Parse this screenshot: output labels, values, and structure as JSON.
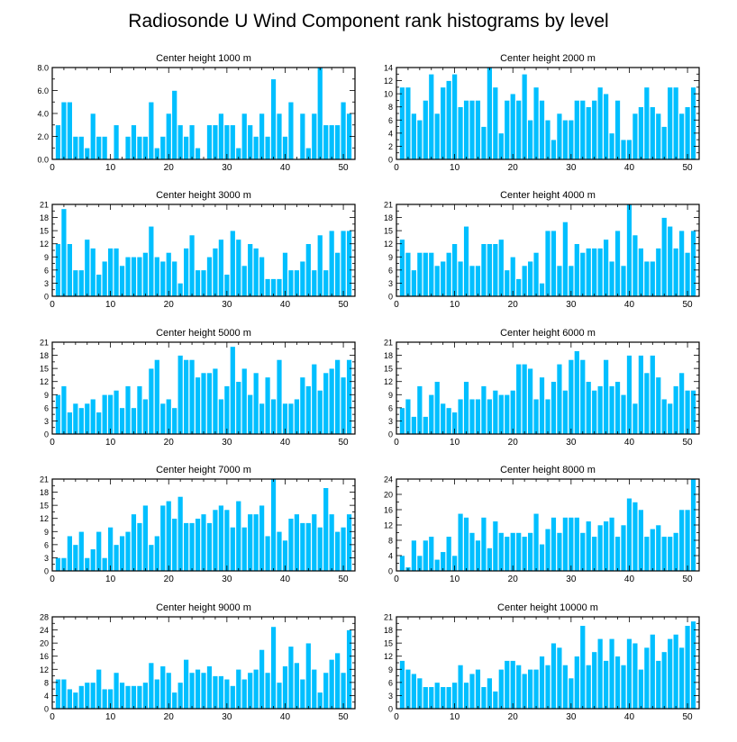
{
  "title": "Radiosonde U Wind Component rank histograms by level",
  "colors": {
    "bar": "#00BFFF",
    "bar_edge": "#ffffff",
    "axis": "#000000",
    "background": "#ffffff"
  },
  "chart_data": [
    {
      "type": "bar",
      "title": "Center height 1000 m",
      "xlabel": "",
      "ylabel": "",
      "xlim": [
        0,
        52
      ],
      "ylim": [
        0,
        8
      ],
      "xticks": [
        0,
        10,
        20,
        30,
        40,
        50
      ],
      "yticks": [
        0,
        2,
        4,
        6,
        8
      ],
      "ytick_labels": [
        "0.0",
        "2.0",
        "4.0",
        "6.0",
        "8.0"
      ],
      "x": [
        1,
        2,
        3,
        4,
        5,
        6,
        7,
        8,
        9,
        10,
        11,
        12,
        13,
        14,
        15,
        16,
        17,
        18,
        19,
        20,
        21,
        22,
        23,
        24,
        25,
        26,
        27,
        28,
        29,
        30,
        31,
        32,
        33,
        34,
        35,
        36,
        37,
        38,
        39,
        40,
        41,
        42,
        43,
        44,
        45,
        46,
        47,
        48,
        49,
        50,
        51
      ],
      "values": [
        3,
        5,
        5,
        2,
        2,
        1,
        4,
        2,
        2,
        0,
        3,
        0,
        2,
        3,
        2,
        2,
        5,
        1,
        2,
        4,
        6,
        3,
        2,
        3,
        1,
        0,
        3,
        3,
        4,
        3,
        3,
        1,
        4,
        3,
        2,
        4,
        2,
        7,
        4,
        2,
        5,
        0,
        4,
        1,
        4,
        8,
        3,
        3,
        3,
        5,
        4
      ]
    },
    {
      "type": "bar",
      "title": "Center height 2000 m",
      "xlabel": "",
      "ylabel": "",
      "xlim": [
        0,
        52
      ],
      "ylim": [
        0,
        14
      ],
      "xticks": [
        0,
        10,
        20,
        30,
        40,
        50
      ],
      "yticks": [
        0,
        2,
        4,
        6,
        8,
        10,
        12,
        14
      ],
      "ytick_labels": [
        "0",
        "2",
        "4",
        "6",
        "8",
        "10",
        "12",
        "14"
      ],
      "x": [
        1,
        2,
        3,
        4,
        5,
        6,
        7,
        8,
        9,
        10,
        11,
        12,
        13,
        14,
        15,
        16,
        17,
        18,
        19,
        20,
        21,
        22,
        23,
        24,
        25,
        26,
        27,
        28,
        29,
        30,
        31,
        32,
        33,
        34,
        35,
        36,
        37,
        38,
        39,
        40,
        41,
        42,
        43,
        44,
        45,
        46,
        47,
        48,
        49,
        50,
        51
      ],
      "values": [
        11,
        11,
        7,
        6,
        9,
        13,
        7,
        11,
        12,
        13,
        8,
        9,
        9,
        9,
        5,
        14,
        11,
        4,
        9,
        10,
        9,
        13,
        6,
        11,
        9,
        6,
        3,
        7,
        6,
        6,
        9,
        9,
        8,
        9,
        11,
        10,
        4,
        9,
        3,
        3,
        7,
        8,
        11,
        8,
        7,
        5,
        11,
        11,
        7,
        8,
        11
      ]
    },
    {
      "type": "bar",
      "title": "Center height 3000 m",
      "xlabel": "",
      "ylabel": "",
      "xlim": [
        0,
        52
      ],
      "ylim": [
        0,
        21
      ],
      "xticks": [
        0,
        10,
        20,
        30,
        40,
        50
      ],
      "yticks": [
        0,
        3,
        6,
        9,
        12,
        15,
        18,
        21
      ],
      "ytick_labels": [
        "0",
        "3",
        "6",
        "9",
        "12",
        "15",
        "18",
        "21"
      ],
      "x": [
        1,
        2,
        3,
        4,
        5,
        6,
        7,
        8,
        9,
        10,
        11,
        12,
        13,
        14,
        15,
        16,
        17,
        18,
        19,
        20,
        21,
        22,
        23,
        24,
        25,
        26,
        27,
        28,
        29,
        30,
        31,
        32,
        33,
        34,
        35,
        36,
        37,
        38,
        39,
        40,
        41,
        42,
        43,
        44,
        45,
        46,
        47,
        48,
        49,
        50,
        51
      ],
      "values": [
        12,
        20,
        12,
        6,
        6,
        13,
        11,
        5,
        8,
        11,
        11,
        7,
        9,
        9,
        9,
        10,
        16,
        9,
        8,
        10,
        8,
        3,
        11,
        14,
        6,
        6,
        9,
        11,
        13,
        5,
        15,
        13,
        7,
        12,
        11,
        9,
        4,
        4,
        4,
        10,
        6,
        6,
        8,
        12,
        6,
        14,
        6,
        15,
        10,
        15,
        15
      ]
    },
    {
      "type": "bar",
      "title": "Center height 4000 m",
      "xlabel": "",
      "ylabel": "",
      "xlim": [
        0,
        52
      ],
      "ylim": [
        0,
        21
      ],
      "xticks": [
        0,
        10,
        20,
        30,
        40,
        50
      ],
      "yticks": [
        0,
        3,
        6,
        9,
        12,
        15,
        18,
        21
      ],
      "ytick_labels": [
        "0",
        "3",
        "6",
        "9",
        "12",
        "15",
        "18",
        "21"
      ],
      "x": [
        1,
        2,
        3,
        4,
        5,
        6,
        7,
        8,
        9,
        10,
        11,
        12,
        13,
        14,
        15,
        16,
        17,
        18,
        19,
        20,
        21,
        22,
        23,
        24,
        25,
        26,
        27,
        28,
        29,
        30,
        31,
        32,
        33,
        34,
        35,
        36,
        37,
        38,
        39,
        40,
        41,
        42,
        43,
        44,
        45,
        46,
        47,
        48,
        49,
        50,
        51
      ],
      "values": [
        13,
        10,
        6,
        10,
        10,
        10,
        7,
        8,
        10,
        12,
        8,
        16,
        7,
        7,
        12,
        12,
        12,
        13,
        6,
        9,
        4,
        7,
        8,
        10,
        3,
        15,
        15,
        7,
        17,
        7,
        12,
        10,
        11,
        11,
        11,
        13,
        8,
        15,
        7,
        21,
        14,
        11,
        8,
        8,
        11,
        18,
        16,
        11,
        15,
        10,
        15
      ]
    },
    {
      "type": "bar",
      "title": "Center height 5000 m",
      "xlabel": "",
      "ylabel": "",
      "xlim": [
        0,
        52
      ],
      "ylim": [
        0,
        21
      ],
      "xticks": [
        0,
        10,
        20,
        30,
        40,
        50
      ],
      "yticks": [
        0,
        3,
        6,
        9,
        12,
        15,
        18,
        21
      ],
      "ytick_labels": [
        "0",
        "3",
        "6",
        "9",
        "12",
        "15",
        "18",
        "21"
      ],
      "x": [
        1,
        2,
        3,
        4,
        5,
        6,
        7,
        8,
        9,
        10,
        11,
        12,
        13,
        14,
        15,
        16,
        17,
        18,
        19,
        20,
        21,
        22,
        23,
        24,
        25,
        26,
        27,
        28,
        29,
        30,
        31,
        32,
        33,
        34,
        35,
        36,
        37,
        38,
        39,
        40,
        41,
        42,
        43,
        44,
        45,
        46,
        47,
        48,
        49,
        50,
        51
      ],
      "values": [
        9,
        11,
        5,
        7,
        6,
        7,
        8,
        5,
        9,
        9,
        10,
        6,
        11,
        6,
        11,
        8,
        15,
        17,
        7,
        8,
        6,
        18,
        17,
        17,
        13,
        14,
        14,
        15,
        8,
        11,
        20,
        12,
        15,
        9,
        14,
        7,
        13,
        8,
        17,
        7,
        7,
        8,
        13,
        11,
        16,
        10,
        14,
        15,
        17,
        13,
        17
      ]
    },
    {
      "type": "bar",
      "title": "Center height 6000 m",
      "xlabel": "",
      "ylabel": "",
      "xlim": [
        0,
        52
      ],
      "ylim": [
        0,
        21
      ],
      "xticks": [
        0,
        10,
        20,
        30,
        40,
        50
      ],
      "yticks": [
        0,
        3,
        6,
        9,
        12,
        15,
        18,
        21
      ],
      "ytick_labels": [
        "0",
        "3",
        "6",
        "9",
        "12",
        "15",
        "18",
        "21"
      ],
      "x": [
        1,
        2,
        3,
        4,
        5,
        6,
        7,
        8,
        9,
        10,
        11,
        12,
        13,
        14,
        15,
        16,
        17,
        18,
        19,
        20,
        21,
        22,
        23,
        24,
        25,
        26,
        27,
        28,
        29,
        30,
        31,
        32,
        33,
        34,
        35,
        36,
        37,
        38,
        39,
        40,
        41,
        42,
        43,
        44,
        45,
        46,
        47,
        48,
        49,
        50,
        51
      ],
      "values": [
        6,
        8,
        4,
        11,
        4,
        9,
        12,
        7,
        6,
        5,
        8,
        12,
        8,
        8,
        11,
        8,
        10,
        9,
        9,
        10,
        16,
        16,
        15,
        8,
        13,
        8,
        12,
        16,
        10,
        17,
        19,
        17,
        12,
        10,
        11,
        17,
        11,
        12,
        9,
        18,
        7,
        18,
        14,
        18,
        13,
        8,
        7,
        11,
        14,
        10,
        10
      ]
    },
    {
      "type": "bar",
      "title": "Center height 7000 m",
      "xlabel": "",
      "ylabel": "",
      "xlim": [
        0,
        52
      ],
      "ylim": [
        0,
        21
      ],
      "xticks": [
        0,
        10,
        20,
        30,
        40,
        50
      ],
      "yticks": [
        0,
        3,
        6,
        9,
        12,
        15,
        18,
        21
      ],
      "ytick_labels": [
        "0",
        "3",
        "6",
        "9",
        "12",
        "15",
        "18",
        "21"
      ],
      "x": [
        1,
        2,
        3,
        4,
        5,
        6,
        7,
        8,
        9,
        10,
        11,
        12,
        13,
        14,
        15,
        16,
        17,
        18,
        19,
        20,
        21,
        22,
        23,
        24,
        25,
        26,
        27,
        28,
        29,
        30,
        31,
        32,
        33,
        34,
        35,
        36,
        37,
        38,
        39,
        40,
        41,
        42,
        43,
        44,
        45,
        46,
        47,
        48,
        49,
        50,
        51
      ],
      "values": [
        3,
        3,
        8,
        6,
        9,
        3,
        5,
        9,
        3,
        10,
        6,
        8,
        9,
        13,
        11,
        15,
        6,
        8,
        15,
        16,
        12,
        17,
        11,
        11,
        12,
        13,
        11,
        14,
        15,
        14,
        10,
        16,
        10,
        13,
        13,
        15,
        8,
        21,
        9,
        7,
        12,
        13,
        11,
        11,
        13,
        10,
        19,
        13,
        9,
        10,
        13
      ]
    },
    {
      "type": "bar",
      "title": "Center height 8000 m",
      "xlabel": "",
      "ylabel": "",
      "xlim": [
        0,
        52
      ],
      "ylim": [
        0,
        24
      ],
      "xticks": [
        0,
        10,
        20,
        30,
        40,
        50
      ],
      "yticks": [
        0,
        4,
        8,
        12,
        16,
        20,
        24
      ],
      "ytick_labels": [
        "0",
        "4",
        "8",
        "12",
        "16",
        "20",
        "24"
      ],
      "x": [
        1,
        2,
        3,
        4,
        5,
        6,
        7,
        8,
        9,
        10,
        11,
        12,
        13,
        14,
        15,
        16,
        17,
        18,
        19,
        20,
        21,
        22,
        23,
        24,
        25,
        26,
        27,
        28,
        29,
        30,
        31,
        32,
        33,
        34,
        35,
        36,
        37,
        38,
        39,
        40,
        41,
        42,
        43,
        44,
        45,
        46,
        47,
        48,
        49,
        50,
        51
      ],
      "values": [
        4,
        1,
        8,
        4,
        8,
        9,
        3,
        5,
        9,
        4,
        15,
        14,
        10,
        8,
        14,
        6,
        13,
        10,
        9,
        10,
        10,
        9,
        10,
        15,
        7,
        11,
        14,
        10,
        14,
        14,
        14,
        10,
        13,
        9,
        12,
        13,
        14,
        9,
        12,
        19,
        18,
        16,
        9,
        11,
        12,
        9,
        9,
        10,
        16,
        16,
        24
      ]
    },
    {
      "type": "bar",
      "title": "Center height 9000 m",
      "xlabel": "",
      "ylabel": "",
      "xlim": [
        0,
        52
      ],
      "ylim": [
        0,
        28
      ],
      "xticks": [
        0,
        10,
        20,
        30,
        40,
        50
      ],
      "yticks": [
        0,
        4,
        8,
        12,
        16,
        20,
        24,
        28
      ],
      "ytick_labels": [
        "0",
        "4",
        "8",
        "12",
        "16",
        "20",
        "24",
        "28"
      ],
      "x": [
        1,
        2,
        3,
        4,
        5,
        6,
        7,
        8,
        9,
        10,
        11,
        12,
        13,
        14,
        15,
        16,
        17,
        18,
        19,
        20,
        21,
        22,
        23,
        24,
        25,
        26,
        27,
        28,
        29,
        30,
        31,
        32,
        33,
        34,
        35,
        36,
        37,
        38,
        39,
        40,
        41,
        42,
        43,
        44,
        45,
        46,
        47,
        48,
        49,
        50,
        51
      ],
      "values": [
        9,
        9,
        6,
        5,
        7,
        8,
        8,
        12,
        6,
        6,
        11,
        8,
        7,
        7,
        7,
        8,
        14,
        9,
        13,
        11,
        5,
        8,
        15,
        11,
        12,
        11,
        13,
        10,
        10,
        9,
        7,
        12,
        9,
        11,
        12,
        18,
        11,
        25,
        8,
        13,
        19,
        14,
        9,
        20,
        12,
        5,
        11,
        15,
        17,
        11,
        24
      ]
    },
    {
      "type": "bar",
      "title": "Center height 10000 m",
      "xlabel": "",
      "ylabel": "",
      "xlim": [
        0,
        52
      ],
      "ylim": [
        0,
        21
      ],
      "xticks": [
        0,
        10,
        20,
        30,
        40,
        50
      ],
      "yticks": [
        0,
        3,
        6,
        9,
        12,
        15,
        18,
        21
      ],
      "ytick_labels": [
        "0",
        "3",
        "6",
        "9",
        "12",
        "15",
        "18",
        "21"
      ],
      "x": [
        1,
        2,
        3,
        4,
        5,
        6,
        7,
        8,
        9,
        10,
        11,
        12,
        13,
        14,
        15,
        16,
        17,
        18,
        19,
        20,
        21,
        22,
        23,
        24,
        25,
        26,
        27,
        28,
        29,
        30,
        31,
        32,
        33,
        34,
        35,
        36,
        37,
        38,
        39,
        40,
        41,
        42,
        43,
        44,
        45,
        46,
        47,
        48,
        49,
        50,
        51
      ],
      "values": [
        11,
        9,
        8,
        7,
        5,
        5,
        6,
        5,
        5,
        6,
        10,
        6,
        8,
        9,
        5,
        7,
        4,
        9,
        11,
        11,
        10,
        8,
        9,
        9,
        12,
        10,
        15,
        14,
        10,
        7,
        12,
        19,
        10,
        13,
        16,
        11,
        16,
        12,
        10,
        16,
        15,
        9,
        14,
        17,
        11,
        13,
        16,
        17,
        14,
        19,
        20
      ]
    }
  ]
}
